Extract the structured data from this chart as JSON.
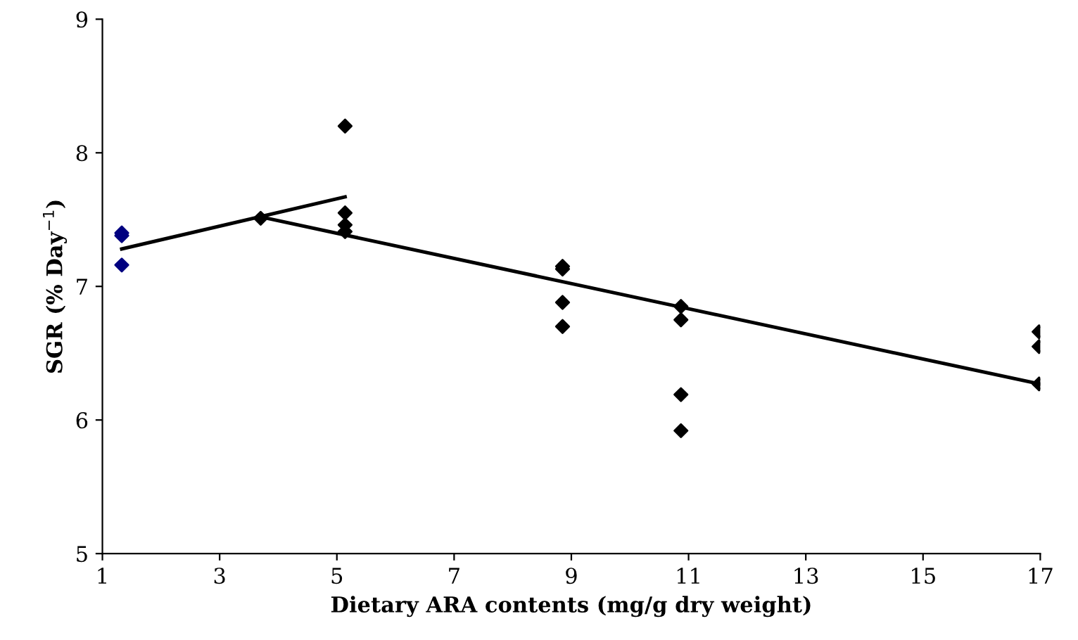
{
  "chart_data": {
    "type": "scatter",
    "xlabel": "Dietary ARA contents (mg/g dry weight)",
    "ylabel": "SGR (% Day$^{−1}$)",
    "xlim": [
      1,
      17
    ],
    "xticks": [
      1,
      3,
      5,
      7,
      9,
      11,
      13,
      15,
      17
    ],
    "ylim": [
      5,
      9
    ],
    "yticks": [
      5,
      6,
      7,
      8,
      9
    ],
    "grid": false,
    "legend": false,
    "marker": "diamond",
    "series": [
      {
        "color": "#000080",
        "x": [
          1.33,
          1.33,
          1.33
        ],
        "values": [
          7.4,
          7.38,
          7.16
        ]
      },
      {
        "color": "#000000",
        "x": [
          3.7,
          5.14,
          5.14,
          5.14,
          5.14,
          8.85,
          8.85,
          8.85,
          8.85,
          10.87,
          10.87,
          10.87,
          10.87,
          16.98,
          16.98,
          16.98
        ],
        "values": [
          7.51,
          8.2,
          7.55,
          7.46,
          7.41,
          7.15,
          7.13,
          6.88,
          6.7,
          6.85,
          6.75,
          6.19,
          5.92,
          6.66,
          6.55,
          6.27
        ]
      },
      {
        "type": "line",
        "color": "#000000",
        "line_style": "solid",
        "marker": "none",
        "x": [
          1.33,
          5.14
        ],
        "values": [
          7.28,
          7.67
        ]
      },
      {
        "type": "line",
        "color": "#000000",
        "line_style": "solid",
        "marker": "none",
        "x": [
          3.7,
          16.98
        ],
        "values": [
          7.52,
          6.27
        ]
      }
    ]
  }
}
